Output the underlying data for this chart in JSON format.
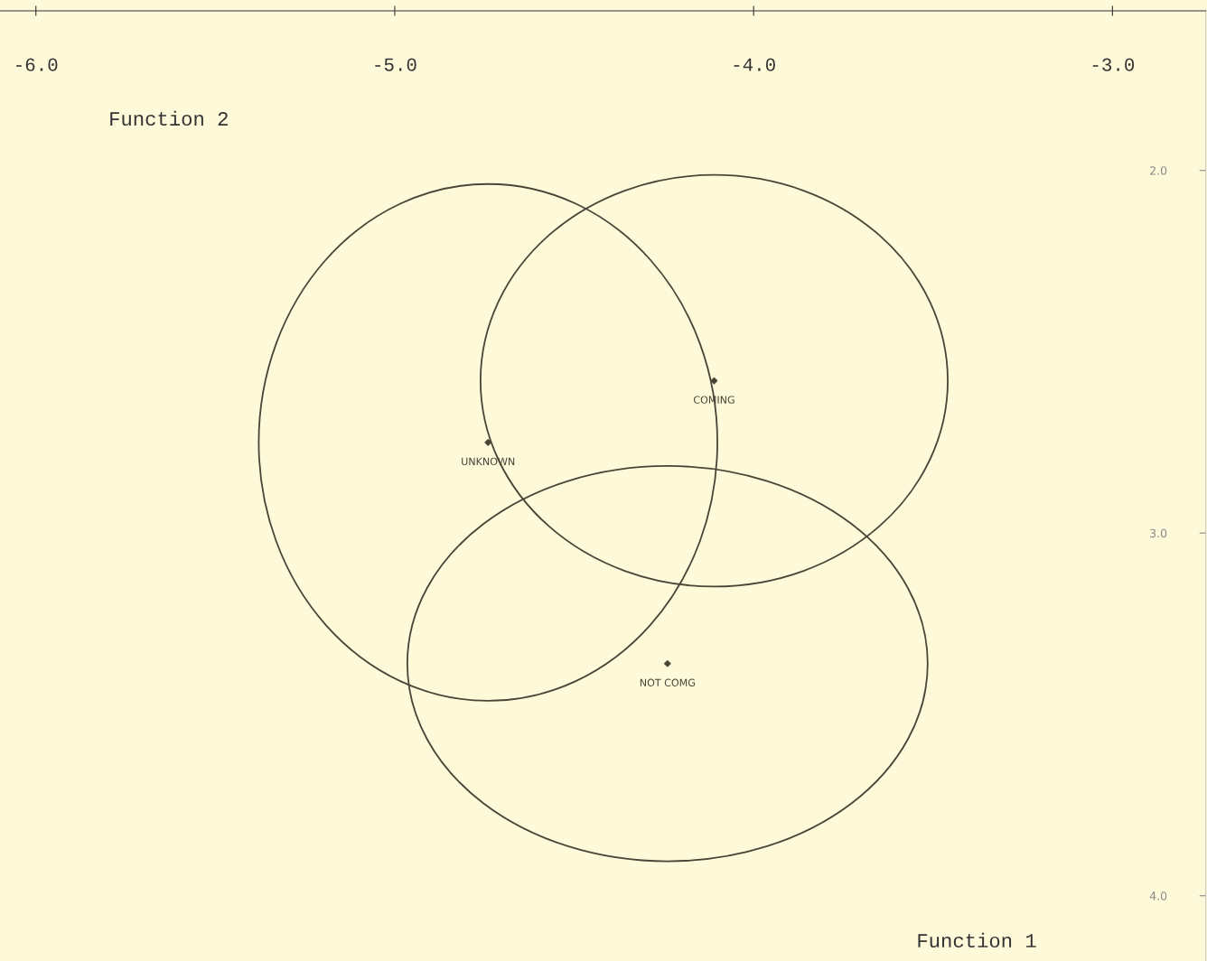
{
  "chart_data": {
    "type": "scatter",
    "xlim": [
      -6.1,
      -2.74
    ],
    "ylim": [
      4.18,
      1.56
    ],
    "xticks": [
      {
        "value": -6,
        "label": "-6.0"
      },
      {
        "value": -5,
        "label": "-5.0"
      },
      {
        "value": -4,
        "label": "-4.0"
      },
      {
        "value": -3,
        "label": "-3.0"
      }
    ],
    "yticks": [
      {
        "value": 2,
        "label": "2.0"
      },
      {
        "value": 3,
        "label": "3.0"
      },
      {
        "value": 4,
        "label": "4.0"
      }
    ],
    "annotations": [
      "Function 2",
      "Function 1"
    ],
    "grid": false,
    "legend": false,
    "series": [
      {
        "name": "COMING",
        "color": "#4a4536",
        "marker": "diamond",
        "x": [
          -4.11
        ],
        "values": [
          2.58
        ]
      },
      {
        "name": "UNKNOWN",
        "color": "#4a4536",
        "marker": "diamond",
        "x": [
          -4.74
        ],
        "values": [
          2.75
        ]
      },
      {
        "name": "NOT COMG",
        "color": "#4a4536",
        "marker": "diamond",
        "x": [
          -4.24
        ],
        "values": [
          3.36
        ]
      }
    ]
  }
}
